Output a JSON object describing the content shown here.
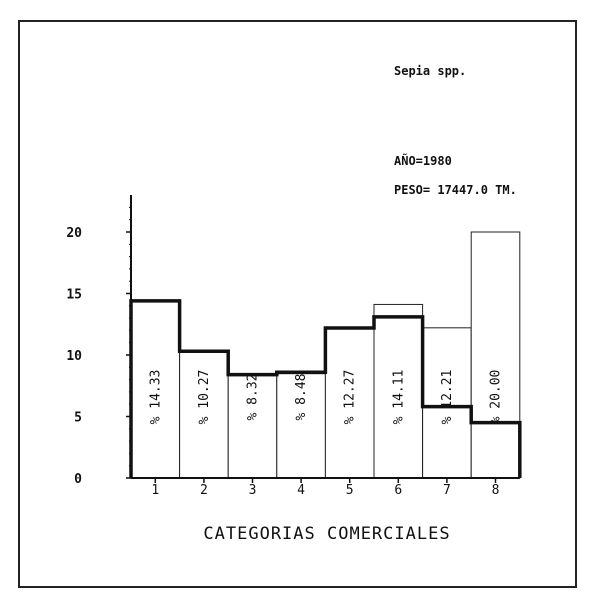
{
  "chart_data": {
    "type": "bar",
    "species": "Sepia spp.",
    "year_label": "AÑO=1980",
    "weight_label": "PESO= 17447.0 TM.",
    "xlabel": "CATEGORIAS COMERCIALES",
    "ylabel": "",
    "categories": [
      "1",
      "2",
      "3",
      "4",
      "5",
      "6",
      "7",
      "8"
    ],
    "series": [
      {
        "values": [
          14.33,
          10.27,
          8.32,
          8.48,
          12.27,
          14.11,
          12.21,
          20.0
        ]
      },
      {
        "values": [
          14.4,
          10.3,
          8.4,
          8.6,
          12.2,
          13.1,
          5.8,
          4.5
        ]
      }
    ],
    "bar_labels": [
      "% 14.33",
      "% 10.27",
      "% 8.32",
      "% 8.48",
      "% 12.27",
      "% 14.11",
      "% 12.21",
      "% 20.00"
    ],
    "y_ticks": [
      0,
      5,
      10,
      15,
      20
    ],
    "ylim": [
      0,
      23
    ],
    "grid": false,
    "colors": {
      "bar_fill": "#ffffff",
      "bar_stroke": "#222222",
      "step_line": "#111111"
    }
  }
}
